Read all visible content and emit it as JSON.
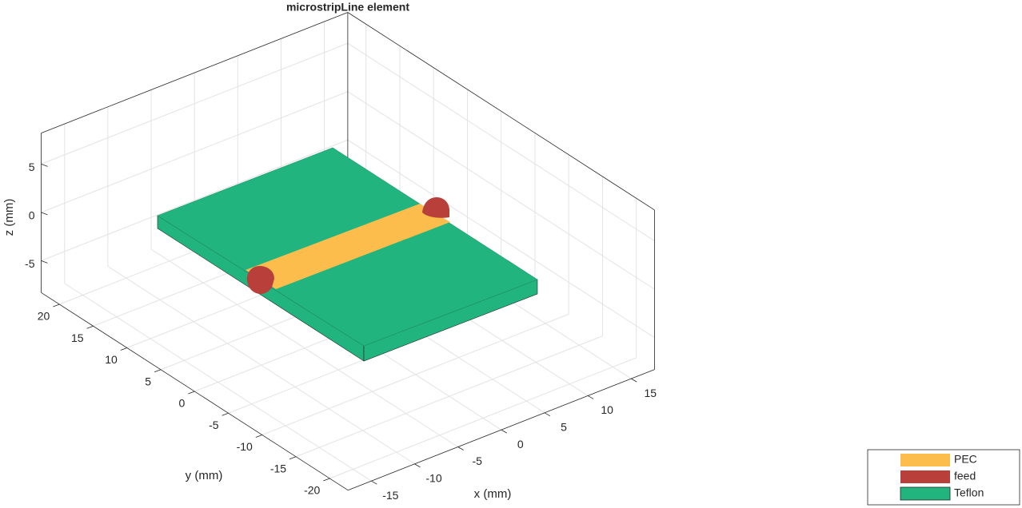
{
  "chart_data": {
    "type": "geometry3d",
    "title": "microstripLine element",
    "xlabel": "x (mm)",
    "ylabel": "y (mm)",
    "zlabel": "z (mm)",
    "xlim": [
      -17.7,
      17.7
    ],
    "ylim": [
      -22.7,
      22.7
    ],
    "zlim": [
      -8.3,
      8.2
    ],
    "xticks": [
      -15,
      -10,
      -5,
      0,
      5,
      10,
      15
    ],
    "yticks": [
      -20,
      -15,
      -10,
      -5,
      0,
      5,
      10,
      15,
      20
    ],
    "zticks": [
      -5,
      0,
      5
    ],
    "grid": true,
    "legend_position": "bottom-right",
    "series": [
      {
        "name": "PEC",
        "color": "#fdbd4c"
      },
      {
        "name": "feed",
        "color": "#b9403a"
      },
      {
        "name": "Teflon",
        "color": "#22b47f"
      }
    ]
  }
}
